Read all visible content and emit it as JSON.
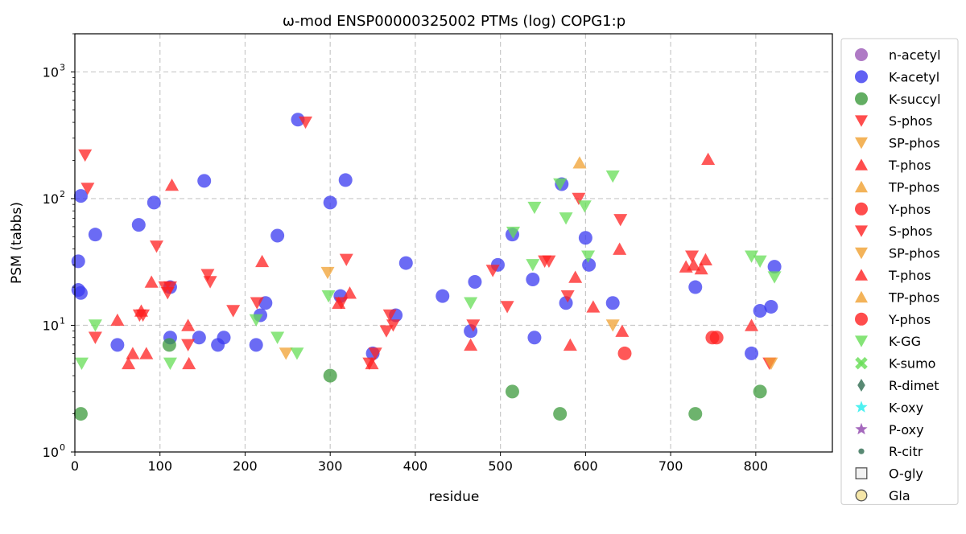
{
  "chart_data": {
    "type": "scatter",
    "title": "ω-mod ENSP00000325002 PTMs (log) COPG1:p",
    "xlabel": "residue",
    "ylabel": "PSM (tabbs)",
    "xlim": [
      0,
      890
    ],
    "ylim": [
      1,
      2000
    ],
    "yscale": "log",
    "x_ticks": [
      0,
      100,
      200,
      300,
      400,
      500,
      600,
      700,
      800
    ],
    "y_ticks": [
      {
        "value": 1,
        "label_base": "10",
        "label_exp": "0"
      },
      {
        "value": 10,
        "label_base": "10",
        "label_exp": "1"
      },
      {
        "value": 100,
        "label_base": "10",
        "label_exp": "2"
      },
      {
        "value": 1000,
        "label_base": "10",
        "label_exp": "3"
      }
    ],
    "grid": true,
    "legend_position": "right, outside the plot",
    "series": [
      {
        "name": "n-acetyl",
        "marker": "circle",
        "color": "#9b59b6",
        "points": []
      },
      {
        "name": "K-acetyl",
        "marker": "circle",
        "color": "#3a3af0",
        "points": [
          [
            4,
            32
          ],
          [
            4,
            19
          ],
          [
            7,
            18
          ],
          [
            7,
            105
          ],
          [
            24,
            52
          ],
          [
            50,
            7
          ],
          [
            75,
            62
          ],
          [
            93,
            93
          ],
          [
            112,
            20
          ],
          [
            112,
            8
          ],
          [
            146,
            8
          ],
          [
            152,
            138
          ],
          [
            168,
            7
          ],
          [
            175,
            8
          ],
          [
            213,
            7
          ],
          [
            218,
            12
          ],
          [
            224,
            15
          ],
          [
            238,
            51
          ],
          [
            262,
            420
          ],
          [
            300,
            93
          ],
          [
            312,
            17
          ],
          [
            318,
            140
          ],
          [
            350,
            6
          ],
          [
            377,
            12
          ],
          [
            389,
            31
          ],
          [
            432,
            17
          ],
          [
            465,
            9
          ],
          [
            470,
            22
          ],
          [
            497,
            30
          ],
          [
            514,
            52
          ],
          [
            538,
            23
          ],
          [
            540,
            8
          ],
          [
            572,
            130
          ],
          [
            577,
            15
          ],
          [
            600,
            49
          ],
          [
            604,
            30
          ],
          [
            632,
            15
          ],
          [
            729,
            20
          ],
          [
            795,
            6
          ],
          [
            805,
            13
          ],
          [
            818,
            14
          ],
          [
            822,
            29
          ]
        ]
      },
      {
        "name": "K-succyl",
        "marker": "circle",
        "color": "#3c9a3c",
        "points": [
          [
            7,
            2
          ],
          [
            111,
            7
          ],
          [
            300,
            4
          ],
          [
            514,
            3
          ],
          [
            570,
            2
          ],
          [
            729,
            2
          ],
          [
            805,
            3
          ]
        ]
      },
      {
        "name": "S-phos",
        "marker": "triangle-down",
        "color": "#ff2020",
        "points": [
          [
            12,
            220
          ],
          [
            15,
            120
          ],
          [
            24,
            8
          ],
          [
            76,
            12
          ],
          [
            80,
            12
          ],
          [
            96,
            42
          ],
          [
            106,
            20
          ],
          [
            109,
            18
          ],
          [
            112,
            20
          ],
          [
            133,
            7
          ],
          [
            156,
            25
          ],
          [
            159,
            22
          ],
          [
            186,
            13
          ],
          [
            214,
            15
          ],
          [
            271,
            400
          ],
          [
            313,
            15
          ],
          [
            319,
            33
          ],
          [
            346,
            5
          ],
          [
            353,
            6
          ],
          [
            366,
            9
          ],
          [
            370,
            12
          ],
          [
            374,
            10
          ],
          [
            468,
            10
          ],
          [
            491,
            27
          ],
          [
            508,
            14
          ],
          [
            552,
            32
          ],
          [
            557,
            32
          ],
          [
            579,
            17
          ],
          [
            592,
            100
          ],
          [
            641,
            68
          ],
          [
            725,
            35
          ],
          [
            816,
            5
          ]
        ]
      },
      {
        "name": "SP-phos",
        "marker": "triangle-down",
        "color": "#f0a030",
        "points": [
          [
            248,
            6
          ],
          [
            297,
            26
          ],
          [
            632,
            10
          ],
          [
            818,
            5
          ]
        ]
      },
      {
        "name": "T-phos",
        "marker": "triangle-up",
        "color": "#ff2020",
        "points": [
          [
            50,
            11
          ],
          [
            63,
            5
          ],
          [
            68,
            6
          ],
          [
            78,
            13
          ],
          [
            84,
            6
          ],
          [
            90,
            22
          ],
          [
            114,
            128
          ],
          [
            133,
            10
          ],
          [
            134,
            5
          ],
          [
            220,
            32
          ],
          [
            310,
            15
          ],
          [
            323,
            18
          ],
          [
            349,
            5
          ],
          [
            465,
            7
          ],
          [
            582,
            7
          ],
          [
            588,
            24
          ],
          [
            609,
            14
          ],
          [
            640,
            40
          ],
          [
            643,
            9
          ],
          [
            718,
            29
          ],
          [
            727,
            30
          ],
          [
            736,
            28
          ],
          [
            741,
            33
          ],
          [
            744,
            205
          ],
          [
            795,
            10
          ]
        ]
      },
      {
        "name": "TP-phos",
        "marker": "triangle-up",
        "color": "#f0a030",
        "points": [
          [
            593,
            192
          ]
        ]
      },
      {
        "name": "Y-phos",
        "marker": "circle",
        "color": "#ff2020",
        "points": [
          [
            646,
            6
          ],
          [
            749,
            8
          ],
          [
            754,
            8
          ]
        ]
      },
      {
        "name": "S-phos",
        "marker": "triangle-down",
        "color": "#ff2020",
        "points": []
      },
      {
        "name": "SP-phos",
        "marker": "triangle-down",
        "color": "#f0a030",
        "points": []
      },
      {
        "name": "T-phos",
        "marker": "triangle-up",
        "color": "#ff2020",
        "points": []
      },
      {
        "name": "TP-phos",
        "marker": "triangle-up",
        "color": "#f0a030",
        "points": []
      },
      {
        "name": "Y-phos",
        "marker": "circle",
        "color": "#ff2020",
        "points": []
      },
      {
        "name": "K-GG",
        "marker": "triangle-down",
        "color": "#66dd55",
        "points": [
          [
            8,
            5
          ],
          [
            24,
            10
          ],
          [
            112,
            5
          ],
          [
            213,
            11
          ],
          [
            238,
            8
          ],
          [
            261,
            6
          ],
          [
            298,
            17
          ],
          [
            465,
            15
          ],
          [
            515,
            54
          ],
          [
            538,
            30
          ],
          [
            540,
            85
          ],
          [
            570,
            130
          ],
          [
            577,
            70
          ],
          [
            599,
            87
          ],
          [
            603,
            35
          ],
          [
            632,
            150
          ],
          [
            795,
            35
          ],
          [
            805,
            32
          ],
          [
            822,
            24
          ]
        ]
      },
      {
        "name": "K-sumo",
        "marker": "x",
        "color": "#66dd55",
        "points": []
      },
      {
        "name": "R-dimet",
        "marker": "diamond",
        "color": "#2e6b50",
        "points": []
      },
      {
        "name": "K-oxy",
        "marker": "star",
        "color": "#22eeee",
        "points": []
      },
      {
        "name": "P-oxy",
        "marker": "star",
        "color": "#8e44ad",
        "points": []
      },
      {
        "name": "R-citr",
        "marker": "small-circle",
        "color": "#2e6b50",
        "points": []
      },
      {
        "name": "O-gly",
        "marker": "square-open",
        "color": "#555555",
        "points": []
      },
      {
        "name": "Gla",
        "marker": "circle-yellow",
        "color": "#f5e6a8",
        "points": []
      }
    ]
  }
}
